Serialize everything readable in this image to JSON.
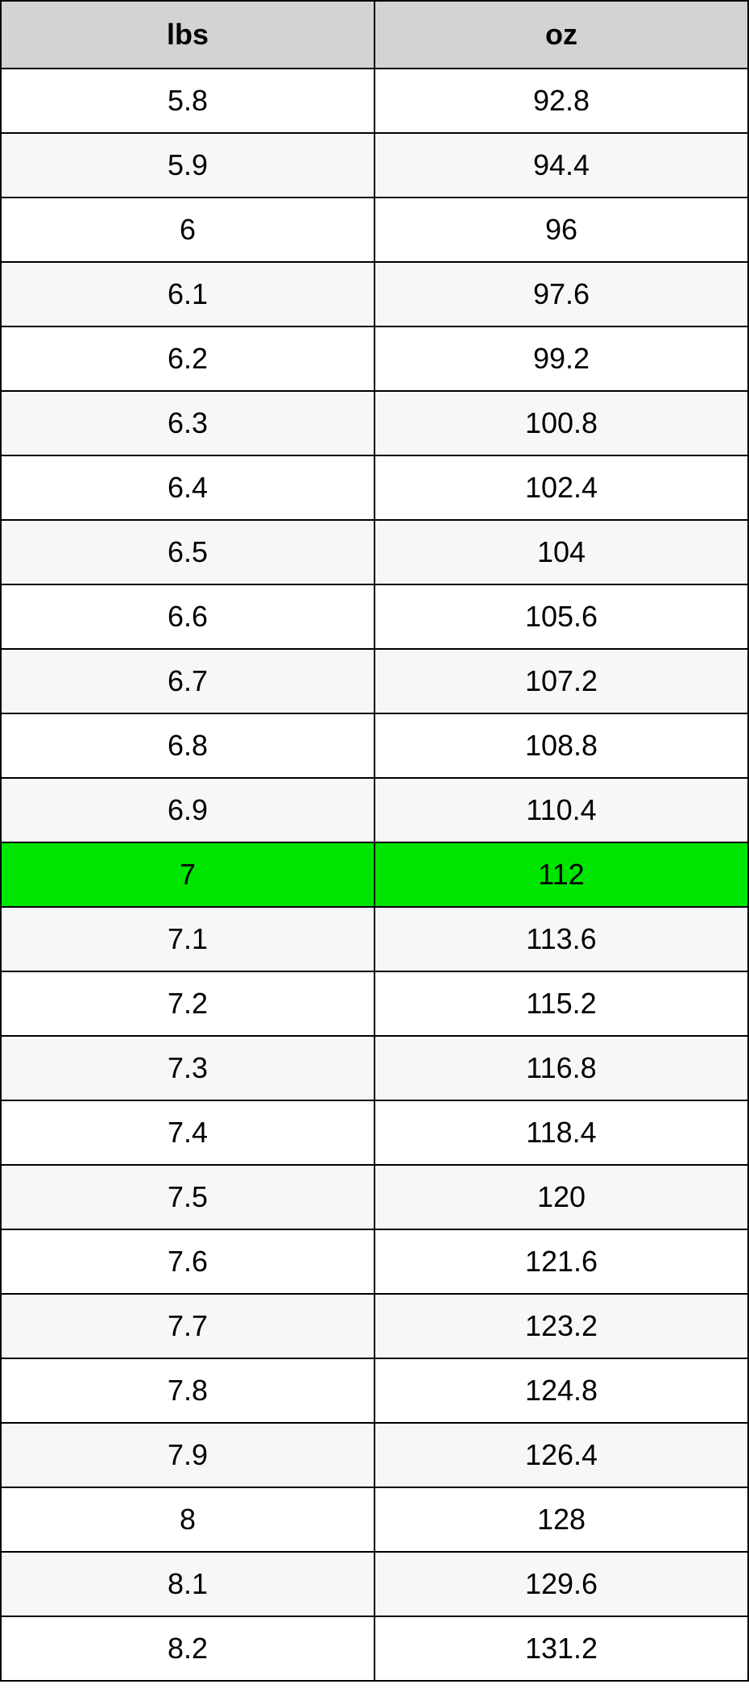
{
  "table": {
    "columns": [
      "lbs",
      "oz"
    ],
    "header_bg": "#d3d3d3",
    "border_color": "#000000",
    "row_bg_white": "#ffffff",
    "row_bg_gray": "#f7f7f7",
    "row_bg_highlight": "#00e500",
    "font_size": 36,
    "header_font_weight": "bold",
    "rows": [
      {
        "lbs": "5.8",
        "oz": "92.8",
        "style": "white"
      },
      {
        "lbs": "5.9",
        "oz": "94.4",
        "style": "gray"
      },
      {
        "lbs": "6",
        "oz": "96",
        "style": "white"
      },
      {
        "lbs": "6.1",
        "oz": "97.6",
        "style": "gray"
      },
      {
        "lbs": "6.2",
        "oz": "99.2",
        "style": "white"
      },
      {
        "lbs": "6.3",
        "oz": "100.8",
        "style": "gray"
      },
      {
        "lbs": "6.4",
        "oz": "102.4",
        "style": "white"
      },
      {
        "lbs": "6.5",
        "oz": "104",
        "style": "gray"
      },
      {
        "lbs": "6.6",
        "oz": "105.6",
        "style": "white"
      },
      {
        "lbs": "6.7",
        "oz": "107.2",
        "style": "gray"
      },
      {
        "lbs": "6.8",
        "oz": "108.8",
        "style": "white"
      },
      {
        "lbs": "6.9",
        "oz": "110.4",
        "style": "gray"
      },
      {
        "lbs": "7",
        "oz": "112",
        "style": "highlight"
      },
      {
        "lbs": "7.1",
        "oz": "113.6",
        "style": "gray"
      },
      {
        "lbs": "7.2",
        "oz": "115.2",
        "style": "white"
      },
      {
        "lbs": "7.3",
        "oz": "116.8",
        "style": "gray"
      },
      {
        "lbs": "7.4",
        "oz": "118.4",
        "style": "white"
      },
      {
        "lbs": "7.5",
        "oz": "120",
        "style": "gray"
      },
      {
        "lbs": "7.6",
        "oz": "121.6",
        "style": "white"
      },
      {
        "lbs": "7.7",
        "oz": "123.2",
        "style": "gray"
      },
      {
        "lbs": "7.8",
        "oz": "124.8",
        "style": "white"
      },
      {
        "lbs": "7.9",
        "oz": "126.4",
        "style": "gray"
      },
      {
        "lbs": "8",
        "oz": "128",
        "style": "white"
      },
      {
        "lbs": "8.1",
        "oz": "129.6",
        "style": "gray"
      },
      {
        "lbs": "8.2",
        "oz": "131.2",
        "style": "white"
      }
    ]
  }
}
